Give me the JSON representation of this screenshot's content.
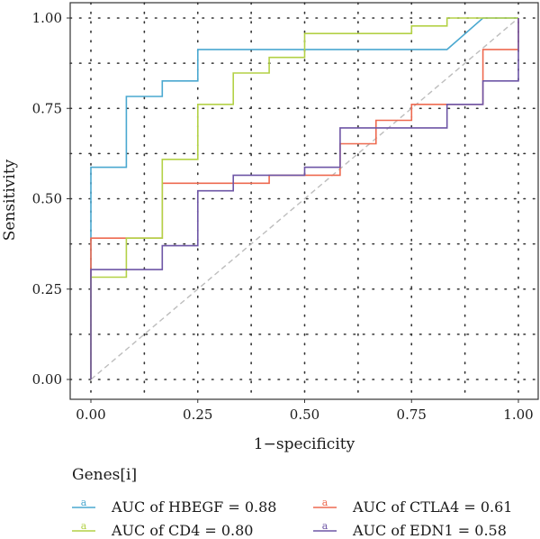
{
  "chart_data": {
    "type": "line",
    "title": "",
    "xlabel": "1−specificity",
    "ylabel": "Sensitivity",
    "xlim": [
      0,
      1
    ],
    "ylim": [
      0,
      1
    ],
    "x_ticks": [
      0.0,
      0.25,
      0.5,
      0.75,
      1.0
    ],
    "y_ticks": [
      0.0,
      0.25,
      0.5,
      0.75,
      1.0
    ],
    "x_tick_labels": [
      "0.00",
      "0.25",
      "0.50",
      "0.75",
      "1.00"
    ],
    "y_tick_labels": [
      "0.00",
      "0.25",
      "0.50",
      "0.75",
      "1.00"
    ],
    "grid": true,
    "grid_style": "dotted",
    "reference_line": {
      "x": [
        0,
        1
      ],
      "y": [
        0,
        1
      ],
      "style": "dashed",
      "color": "#bdbdbd"
    },
    "legend": {
      "title": "Genes[i]",
      "position": "bottom",
      "key_glyph": "a"
    },
    "series": [
      {
        "name": "AUC of HBEGF = 0.88",
        "color": "#4aa8d0",
        "x": [
          0,
          0,
          0.083,
          0.083,
          0.167,
          0.167,
          0.25,
          0.25,
          0.833,
          0.917,
          1.0
        ],
        "y": [
          0,
          0.587,
          0.587,
          0.783,
          0.783,
          0.826,
          0.826,
          0.913,
          0.913,
          1.0,
          1.0
        ]
      },
      {
        "name": "AUC of CTLA4 = 0.61",
        "color": "#ee6a50",
        "x": [
          0,
          0,
          0.083,
          0.083,
          0.167,
          0.167,
          0.417,
          0.417,
          0.583,
          0.583,
          0.667,
          0.667,
          0.75,
          0.75,
          0.917,
          0.917,
          1.0,
          1.0
        ],
        "y": [
          0,
          0.391,
          0.391,
          0.391,
          0.391,
          0.543,
          0.543,
          0.565,
          0.565,
          0.652,
          0.652,
          0.717,
          0.717,
          0.761,
          0.761,
          0.913,
          0.913,
          1.0
        ]
      },
      {
        "name": "AUC of CD4 = 0.80",
        "color": "#b3d146",
        "x": [
          0,
          0,
          0.083,
          0.083,
          0.167,
          0.167,
          0.25,
          0.25,
          0.333,
          0.333,
          0.417,
          0.417,
          0.5,
          0.5,
          0.75,
          0.75,
          0.833,
          0.833,
          1.0
        ],
        "y": [
          0,
          0.283,
          0.283,
          0.391,
          0.391,
          0.609,
          0.609,
          0.761,
          0.761,
          0.848,
          0.848,
          0.891,
          0.891,
          0.957,
          0.957,
          0.978,
          0.978,
          1.0,
          1.0
        ]
      },
      {
        "name": "AUC of EDN1 = 0.58",
        "color": "#6e56a6",
        "x": [
          0,
          0,
          0.167,
          0.167,
          0.25,
          0.25,
          0.333,
          0.333,
          0.5,
          0.5,
          0.583,
          0.583,
          0.833,
          0.833,
          0.917,
          0.917,
          1.0,
          1.0
        ],
        "y": [
          0,
          0.304,
          0.304,
          0.37,
          0.37,
          0.522,
          0.522,
          0.565,
          0.565,
          0.587,
          0.587,
          0.696,
          0.696,
          0.761,
          0.761,
          0.826,
          0.826,
          1.0
        ]
      }
    ]
  }
}
